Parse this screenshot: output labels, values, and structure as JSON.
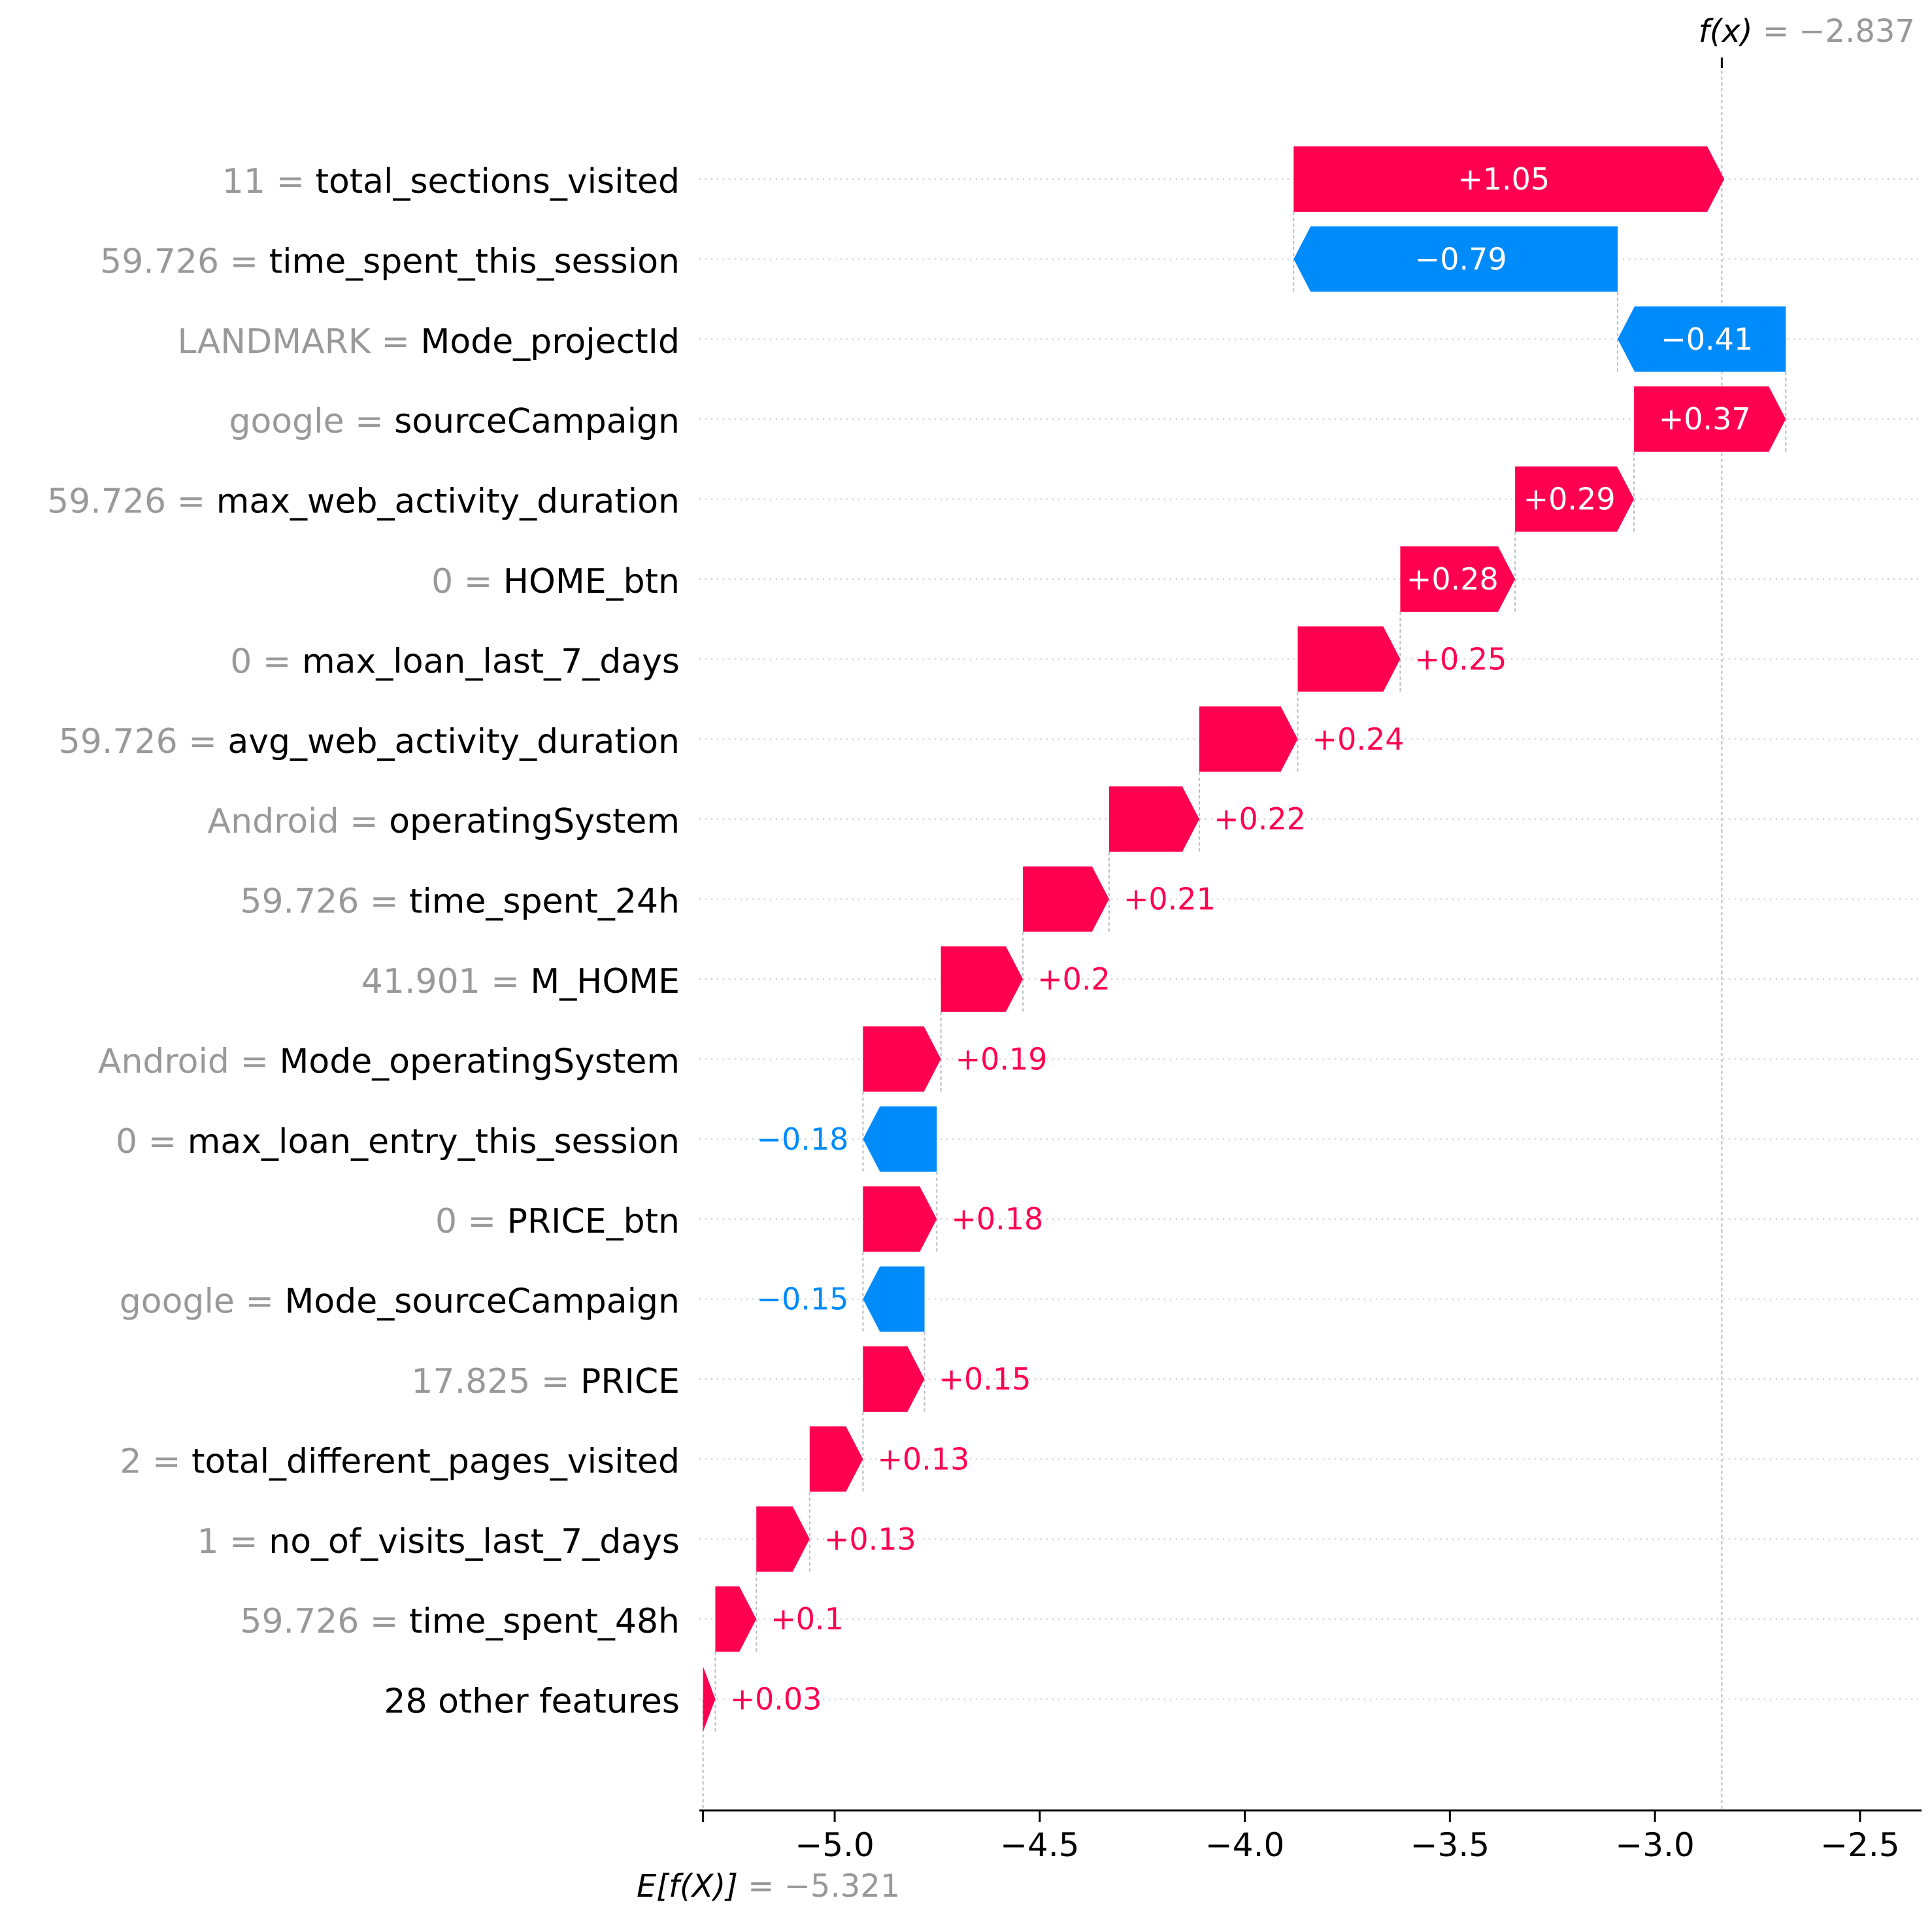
{
  "chart_data": {
    "type": "waterfall",
    "fx_label": "f(x)",
    "fx_value": "= −2.837",
    "fx": -2.837,
    "base_label": "E[f(X)]",
    "base_value": "= −5.321",
    "base": -5.321,
    "xlim": [
      -5.33,
      -2.35
    ],
    "xticks": [
      -5.0,
      -4.5,
      -4.0,
      -3.5,
      -3.0,
      -2.5
    ],
    "xtick_labels": [
      "−5.0",
      "−4.5",
      "−4.0",
      "−3.5",
      "−3.0",
      "−2.5"
    ],
    "colors": {
      "positive": "#ff0051",
      "negative": "#008bfb",
      "value": "#999999",
      "axis": "#000000"
    },
    "features": [
      {
        "value_text": "11",
        "name": "total_sections_visited",
        "shap": 1.05,
        "label": "+1.05"
      },
      {
        "value_text": "59.726",
        "name": "time_spent_this_session",
        "shap": -0.79,
        "label": "−0.79"
      },
      {
        "value_text": "LANDMARK",
        "name": "Mode_projectId",
        "shap": -0.41,
        "label": "−0.41"
      },
      {
        "value_text": "google",
        "name": "sourceCampaign",
        "shap": 0.37,
        "label": "+0.37"
      },
      {
        "value_text": "59.726",
        "name": "max_web_activity_duration",
        "shap": 0.29,
        "label": "+0.29"
      },
      {
        "value_text": "0",
        "name": "HOME_btn",
        "shap": 0.28,
        "label": "+0.28"
      },
      {
        "value_text": "0",
        "name": "max_loan_last_7_days",
        "shap": 0.25,
        "label": "+0.25"
      },
      {
        "value_text": "59.726",
        "name": "avg_web_activity_duration",
        "shap": 0.24,
        "label": "+0.24"
      },
      {
        "value_text": "Android",
        "name": "operatingSystem",
        "shap": 0.22,
        "label": "+0.22"
      },
      {
        "value_text": "59.726",
        "name": "time_spent_24h",
        "shap": 0.21,
        "label": "+0.21"
      },
      {
        "value_text": "41.901",
        "name": "M_HOME",
        "shap": 0.2,
        "label": "+0.2"
      },
      {
        "value_text": "Android",
        "name": "Mode_operatingSystem",
        "shap": 0.19,
        "label": "+0.19"
      },
      {
        "value_text": "0",
        "name": "max_loan_entry_this_session",
        "shap": -0.18,
        "label": "−0.18"
      },
      {
        "value_text": "0",
        "name": "PRICE_btn",
        "shap": 0.18,
        "label": "+0.18"
      },
      {
        "value_text": "google",
        "name": "Mode_sourceCampaign",
        "shap": -0.15,
        "label": "−0.15"
      },
      {
        "value_text": "17.825",
        "name": "PRICE",
        "shap": 0.15,
        "label": "+0.15"
      },
      {
        "value_text": "2",
        "name": "total_different_pages_visited",
        "shap": 0.13,
        "label": "+0.13"
      },
      {
        "value_text": "1",
        "name": "no_of_visits_last_7_days",
        "shap": 0.13,
        "label": "+0.13"
      },
      {
        "value_text": "59.726",
        "name": "time_spent_48h",
        "shap": 0.1,
        "label": "+0.1"
      },
      {
        "value_text": "",
        "name": "28 other features",
        "shap": 0.03,
        "label": "+0.03"
      }
    ]
  }
}
